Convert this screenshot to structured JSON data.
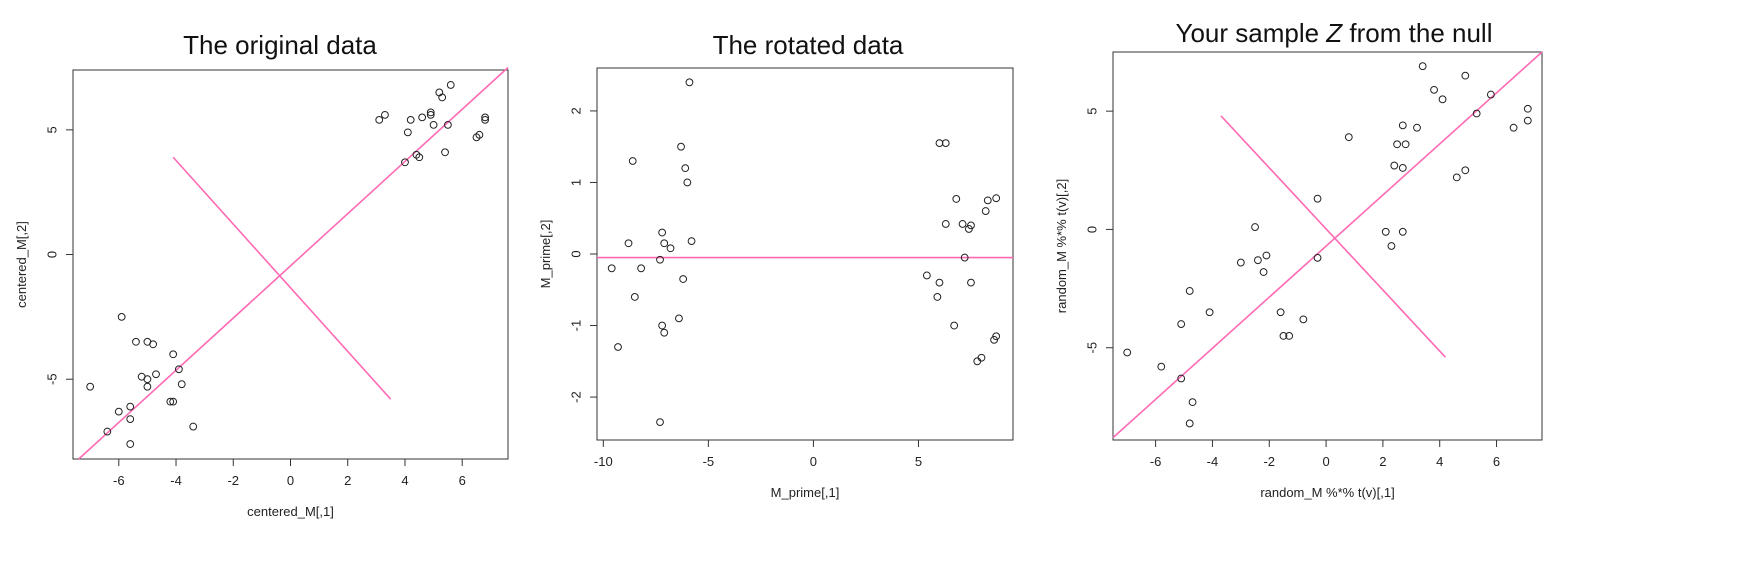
{
  "chart_data": [
    {
      "type": "scatter",
      "title": "The original data",
      "xlabel": "centered_M[,1]",
      "ylabel": "centered_M[,2]",
      "xlim": [
        -7.6,
        7.6
      ],
      "ylim": [
        -8.2,
        7.4
      ],
      "xticks": [
        -6,
        -4,
        -2,
        0,
        2,
        4,
        6
      ],
      "yticks": [
        -5,
        0,
        5
      ],
      "xtick_labels": [
        "-6",
        "-4",
        "-2",
        "0",
        "2",
        "4",
        "6"
      ],
      "ytick_labels": [
        "-5",
        "0",
        "5"
      ],
      "grid": false,
      "line_color": "#ff69b4",
      "lines": [
        {
          "x": [
            -7.4,
            7.6
          ],
          "y": [
            -8.2,
            7.5
          ]
        },
        {
          "x": [
            -4.1,
            3.5
          ],
          "y": [
            3.9,
            -5.8
          ]
        }
      ],
      "points": [
        [
          -7.0,
          -5.3
        ],
        [
          -6.4,
          -7.1
        ],
        [
          -6.0,
          -6.3
        ],
        [
          -5.9,
          -2.5
        ],
        [
          -5.6,
          -6.1
        ],
        [
          -5.6,
          -6.6
        ],
        [
          -5.6,
          -7.6
        ],
        [
          -5.4,
          -3.5
        ],
        [
          -5.2,
          -4.9
        ],
        [
          -5.0,
          -5.0
        ],
        [
          -5.0,
          -5.3
        ],
        [
          -5.0,
          -3.5
        ],
        [
          -4.8,
          -3.6
        ],
        [
          -4.7,
          -4.8
        ],
        [
          -4.2,
          -5.9
        ],
        [
          -4.1,
          -5.9
        ],
        [
          -4.1,
          -4.0
        ],
        [
          -3.9,
          -4.6
        ],
        [
          -3.8,
          -5.2
        ],
        [
          -3.4,
          -6.9
        ],
        [
          3.1,
          5.4
        ],
        [
          3.3,
          5.6
        ],
        [
          4.0,
          3.7
        ],
        [
          4.1,
          4.9
        ],
        [
          4.2,
          5.4
        ],
        [
          4.4,
          4.0
        ],
        [
          4.5,
          3.9
        ],
        [
          4.6,
          5.5
        ],
        [
          4.9,
          5.7
        ],
        [
          4.9,
          5.6
        ],
        [
          5.0,
          5.2
        ],
        [
          5.2,
          6.5
        ],
        [
          5.3,
          6.3
        ],
        [
          5.4,
          4.1
        ],
        [
          5.5,
          5.2
        ],
        [
          5.6,
          6.8
        ],
        [
          6.5,
          4.7
        ],
        [
          6.6,
          4.8
        ],
        [
          6.8,
          5.5
        ],
        [
          6.8,
          5.4
        ]
      ]
    },
    {
      "type": "scatter",
      "title": "The rotated data",
      "xlabel": "M_prime[,1]",
      "ylabel": "M_prime[,2]",
      "xlim": [
        -10.3,
        9.5
      ],
      "ylim": [
        -2.6,
        2.6
      ],
      "xticks": [
        -10,
        -5,
        0,
        5
      ],
      "yticks": [
        -2,
        -1,
        0,
        1,
        2
      ],
      "xtick_labels": [
        "-10",
        "-5",
        "0",
        "5"
      ],
      "ytick_labels": [
        "-2",
        "-1",
        "0",
        "1",
        "2"
      ],
      "grid": false,
      "line_color": "#ff69b4",
      "lines": [
        {
          "x": [
            -10.3,
            9.5
          ],
          "y": [
            -0.05,
            -0.05
          ]
        }
      ],
      "points": [
        [
          -9.6,
          -0.2
        ],
        [
          -9.3,
          -1.3
        ],
        [
          -8.8,
          0.15
        ],
        [
          -8.6,
          1.3
        ],
        [
          -8.5,
          -0.6
        ],
        [
          -8.2,
          -0.2
        ],
        [
          -7.3,
          -0.08
        ],
        [
          -7.2,
          0.3
        ],
        [
          -7.2,
          -1.0
        ],
        [
          -7.1,
          0.15
        ],
        [
          -7.1,
          -1.1
        ],
        [
          -7.3,
          -2.35
        ],
        [
          -6.8,
          0.08
        ],
        [
          -6.4,
          -0.9
        ],
        [
          -6.3,
          1.5
        ],
        [
          -6.2,
          -0.35
        ],
        [
          -6.1,
          1.2
        ],
        [
          -6.0,
          1.0
        ],
        [
          -5.9,
          2.4
        ],
        [
          -5.8,
          0.18
        ],
        [
          5.4,
          -0.3
        ],
        [
          5.9,
          -0.6
        ],
        [
          6.0,
          -0.4
        ],
        [
          6.0,
          1.55
        ],
        [
          6.3,
          1.55
        ],
        [
          6.3,
          0.42
        ],
        [
          6.7,
          -1.0
        ],
        [
          6.8,
          0.77
        ],
        [
          7.1,
          0.42
        ],
        [
          7.2,
          -0.05
        ],
        [
          7.4,
          0.35
        ],
        [
          7.5,
          0.4
        ],
        [
          7.5,
          -0.4
        ],
        [
          7.8,
          -1.5
        ],
        [
          8.0,
          -1.45
        ],
        [
          8.2,
          0.6
        ],
        [
          8.3,
          0.75
        ],
        [
          8.6,
          -1.2
        ],
        [
          8.7,
          -1.15
        ],
        [
          8.7,
          0.78
        ]
      ]
    },
    {
      "type": "scatter",
      "title": "Your sample Z from the null",
      "xlabel": "random_M %*% t(v)[,1]",
      "ylabel": "random_M %*% t(v)[,2]",
      "xlim": [
        -7.5,
        7.6
      ],
      "ylim": [
        -8.9,
        7.5
      ],
      "xticks": [
        -6,
        -4,
        -2,
        0,
        2,
        4,
        6
      ],
      "yticks": [
        -5,
        0,
        5
      ],
      "xtick_labels": [
        "-6",
        "-4",
        "-2",
        "0",
        "2",
        "4",
        "6"
      ],
      "ytick_labels": [
        "-5",
        "0",
        "5"
      ],
      "grid": false,
      "line_color": "#ff69b4",
      "lines": [
        {
          "x": [
            -7.5,
            7.6
          ],
          "y": [
            -8.8,
            7.5
          ]
        },
        {
          "x": [
            -3.7,
            4.2
          ],
          "y": [
            4.8,
            -5.4
          ]
        }
      ],
      "points": [
        [
          -7.0,
          -5.2
        ],
        [
          -5.8,
          -5.8
        ],
        [
          -5.1,
          -6.3
        ],
        [
          -5.1,
          -4.0
        ],
        [
          -4.8,
          -2.6
        ],
        [
          -4.7,
          -7.3
        ],
        [
          -4.8,
          -8.2
        ],
        [
          -4.1,
          -3.5
        ],
        [
          -3.0,
          -1.4
        ],
        [
          -2.5,
          0.1
        ],
        [
          -2.4,
          -1.3
        ],
        [
          -2.2,
          -1.8
        ],
        [
          -2.1,
          -1.1
        ],
        [
          -1.6,
          -3.5
        ],
        [
          -1.5,
          -4.5
        ],
        [
          -1.3,
          -4.5
        ],
        [
          -0.8,
          -3.8
        ],
        [
          -0.3,
          1.3
        ],
        [
          -0.3,
          -1.2
        ],
        [
          0.8,
          3.9
        ],
        [
          2.1,
          -0.1
        ],
        [
          2.3,
          -0.7
        ],
        [
          2.4,
          2.7
        ],
        [
          2.5,
          3.6
        ],
        [
          2.7,
          -0.1
        ],
        [
          2.7,
          2.6
        ],
        [
          2.7,
          4.4
        ],
        [
          2.8,
          3.6
        ],
        [
          3.2,
          4.3
        ],
        [
          3.4,
          6.9
        ],
        [
          3.8,
          5.9
        ],
        [
          4.1,
          5.5
        ],
        [
          4.6,
          2.2
        ],
        [
          4.9,
          6.5
        ],
        [
          4.9,
          2.5
        ],
        [
          5.3,
          4.9
        ],
        [
          5.8,
          5.7
        ],
        [
          6.6,
          4.3
        ],
        [
          7.1,
          5.1
        ],
        [
          7.1,
          4.6
        ]
      ]
    }
  ]
}
